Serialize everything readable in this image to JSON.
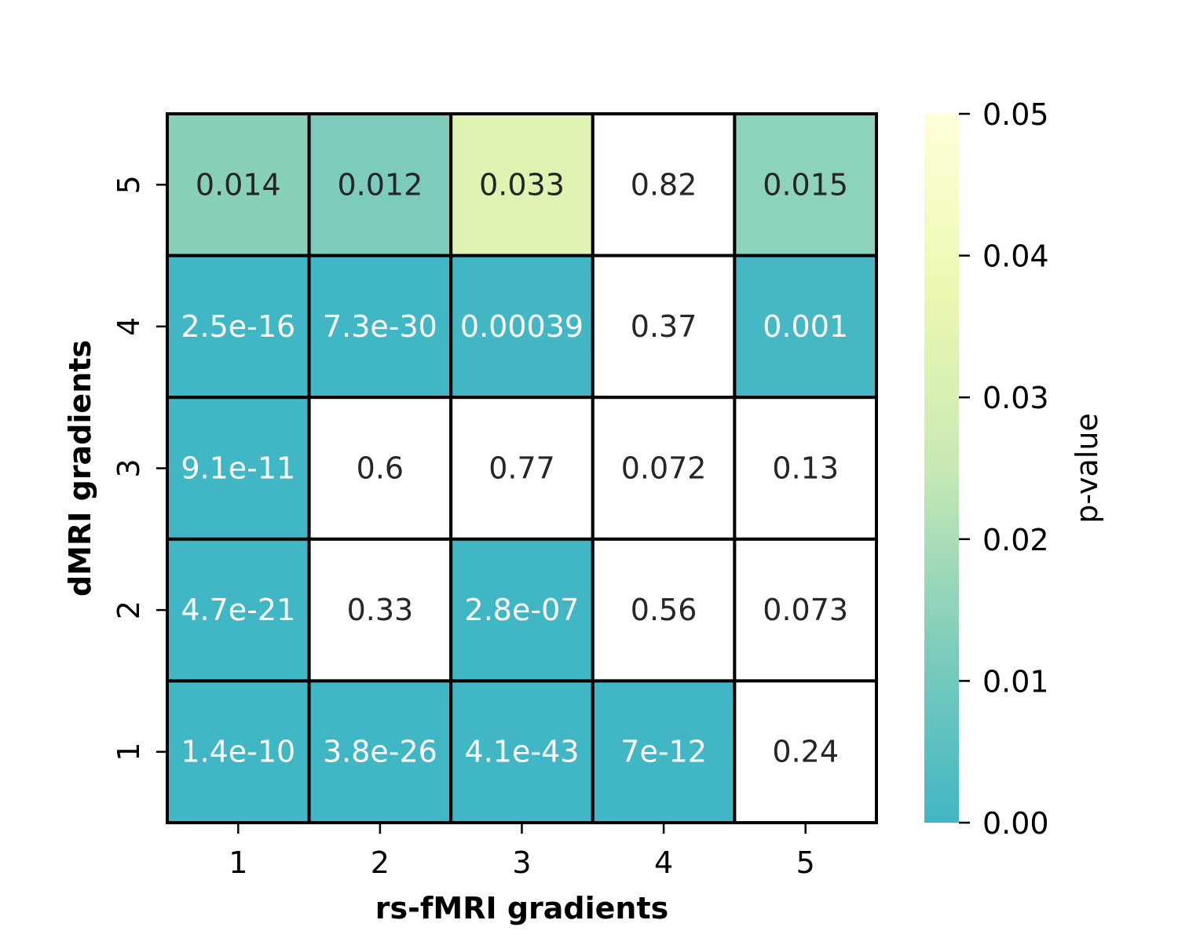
{
  "chart_data": {
    "type": "heatmap",
    "xlabel": "rs-fMRI gradients",
    "ylabel": "dMRI gradients",
    "x_categories": [
      "1",
      "2",
      "3",
      "4",
      "5"
    ],
    "y_categories": [
      "5",
      "4",
      "3",
      "2",
      "1"
    ],
    "values": [
      [
        0.014,
        0.012,
        0.033,
        0.82,
        0.015
      ],
      [
        2.5e-16,
        7.3e-30,
        0.00039,
        0.37,
        0.001
      ],
      [
        9.1e-11,
        0.6,
        0.77,
        0.072,
        0.13
      ],
      [
        4.7e-21,
        0.33,
        2.8e-07,
        0.56,
        0.073
      ],
      [
        1.4e-10,
        3.8e-26,
        4.1e-43,
        7e-12,
        0.24
      ]
    ],
    "annotations": [
      [
        "0.014",
        "0.012",
        "0.033",
        "0.82",
        "0.015"
      ],
      [
        "2.5e-16",
        "7.3e-30",
        "0.00039",
        "0.37",
        "0.001"
      ],
      [
        "9.1e-11",
        "0.6",
        "0.77",
        "0.072",
        "0.13"
      ],
      [
        "4.7e-21",
        "0.33",
        "2.8e-07",
        "0.56",
        "0.073"
      ],
      [
        "1.4e-10",
        "3.8e-26",
        "4.1e-43",
        "7e-12",
        "0.24"
      ]
    ],
    "colorbar": {
      "label": "p-value",
      "vmin": 0.0,
      "vmax": 0.05,
      "ticks": [
        0.0,
        0.01,
        0.02,
        0.03,
        0.04,
        0.05
      ],
      "tick_labels": [
        "0.00",
        "0.01",
        "0.02",
        "0.03",
        "0.04",
        "0.05"
      ],
      "colors": [
        "#41b6c4",
        "#7fcdbb",
        "#c7e9b4",
        "#edf8b1",
        "#ffffd9"
      ],
      "over_color": "#ffffff"
    },
    "grid": true,
    "cell_border_color": "#000000",
    "annotation_colors": {
      "dark_cell": "#ffffff",
      "light_cell": "#262626"
    }
  }
}
